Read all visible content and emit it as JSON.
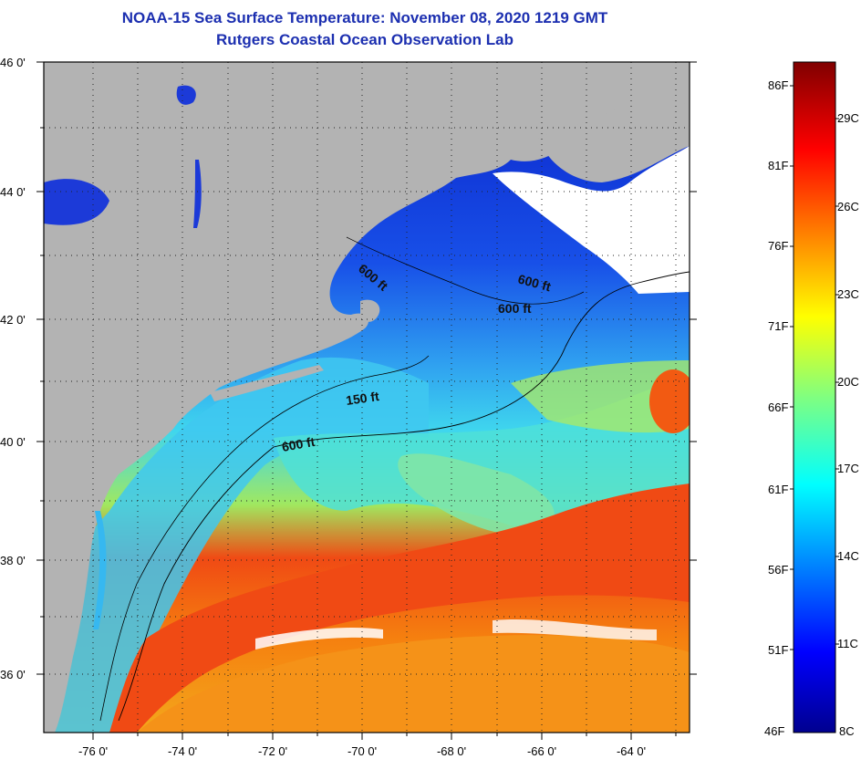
{
  "header": {
    "title": "NOAA-15 Sea Surface Temperature:  November 08, 2020 1219 GMT",
    "subtitle": "Rutgers Coastal Ocean Observation Lab"
  },
  "map": {
    "lat_labels": [
      "46 0'",
      "44 0'",
      "42 0'",
      "40 0'",
      "38 0'",
      "36 0'"
    ],
    "lon_labels": [
      "-76 0'",
      "-74 0'",
      "-72 0'",
      "-70 0'",
      "-68 0'",
      "-66 0'",
      "-64 0'"
    ],
    "contour_labels": [
      "600 ft",
      "600 ft",
      "600 ft",
      "150 ft",
      "600 ft"
    ]
  },
  "colorbar": {
    "fahrenheit_labels": [
      "86F",
      "81F",
      "76F",
      "71F",
      "66F",
      "61F",
      "56F",
      "51F",
      "46F"
    ],
    "celsius_labels": [
      "29C",
      "26C",
      "23C",
      "20C",
      "17C",
      "14C",
      "11C",
      "8C"
    ]
  },
  "colors": {
    "title": "#1c2fb0",
    "land": "#b3b3b3"
  }
}
